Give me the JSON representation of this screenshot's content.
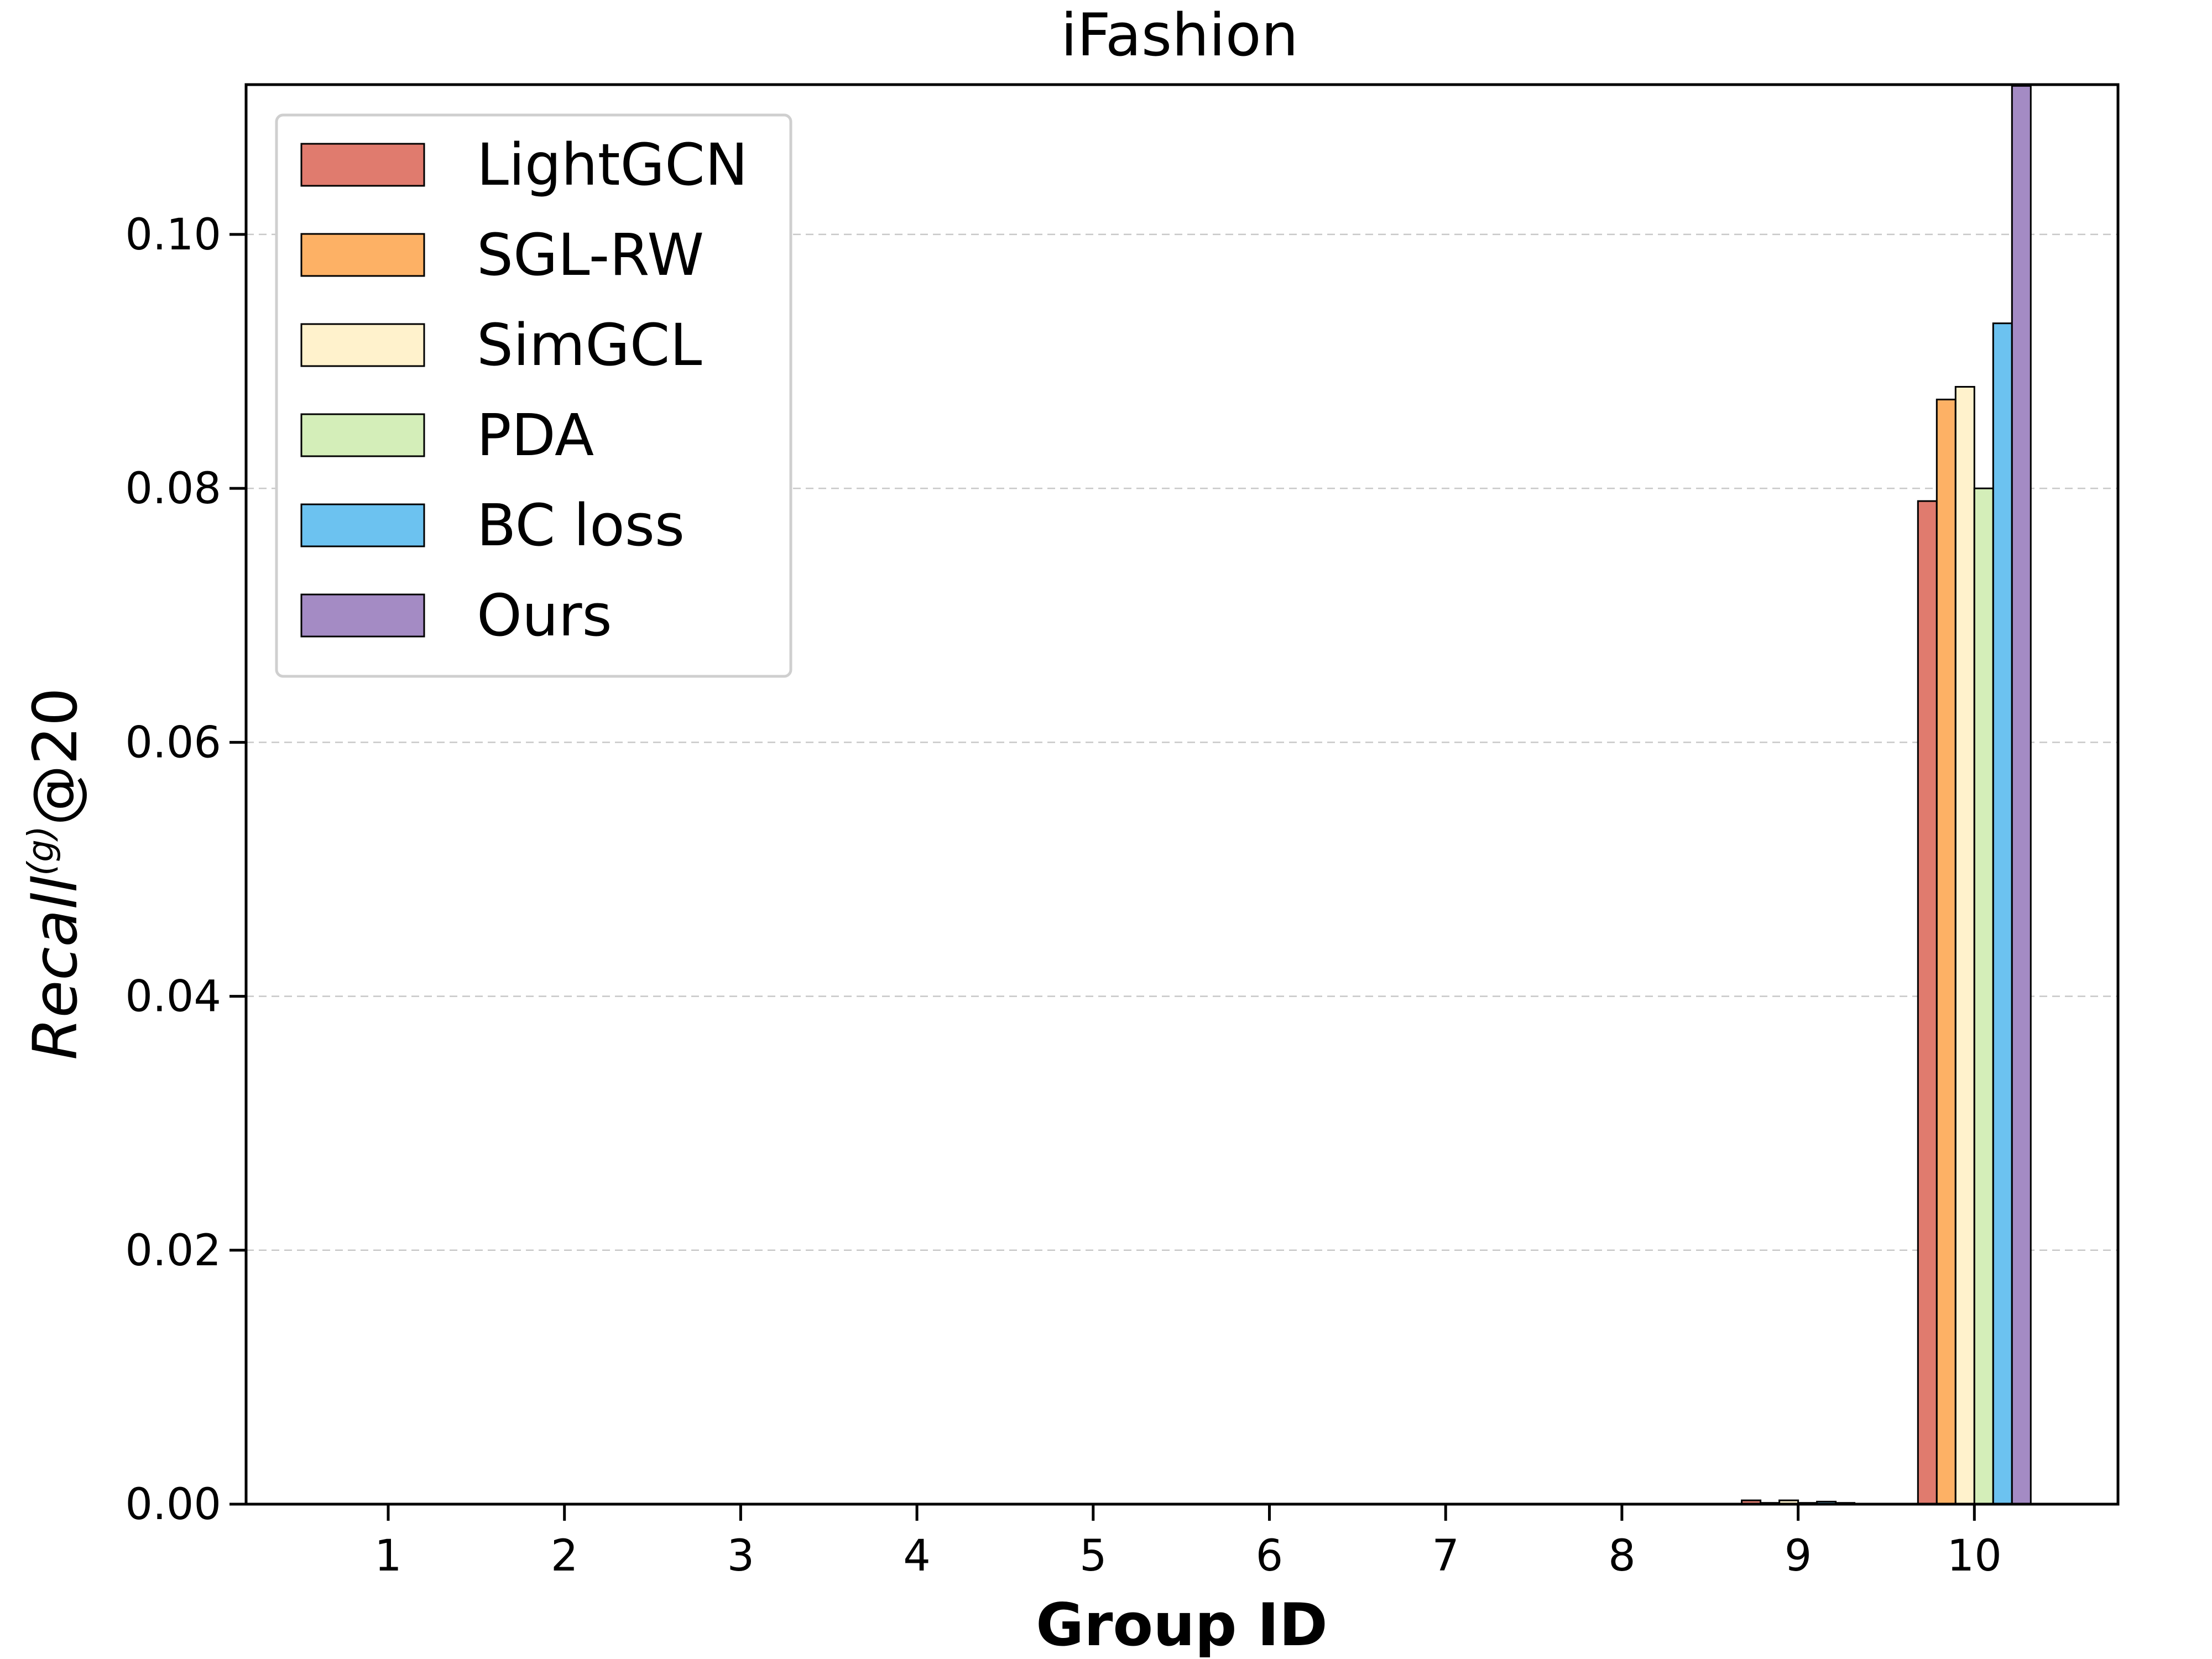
{
  "chart_data": {
    "type": "bar",
    "title": "iFashion",
    "xlabel": "Group ID",
    "ylabel_main": "Recall",
    "ylabel_sup": "(g)",
    "ylabel_suffix": "@20",
    "categories": [
      "1",
      "2",
      "3",
      "4",
      "5",
      "6",
      "7",
      "8",
      "9",
      "10"
    ],
    "ylim": [
      0,
      0.1118
    ],
    "yticks": [
      0.0,
      0.02,
      0.04,
      0.06,
      0.08,
      0.1
    ],
    "ytick_labels": [
      "0.00",
      "0.02",
      "0.04",
      "0.06",
      "0.08",
      "0.10"
    ],
    "grid": "horizontal-dashed",
    "legend_position": "top-left",
    "series": [
      {
        "name": "LightGCN",
        "color": "#e07b6e",
        "values": [
          0,
          0,
          0,
          0,
          0,
          0,
          0,
          0,
          0.0003,
          0.079
        ]
      },
      {
        "name": "SGL-RW",
        "color": "#fdb165",
        "values": [
          0,
          0,
          0,
          0,
          0,
          0,
          0,
          0,
          0.0001,
          0.087
        ]
      },
      {
        "name": "SimGCL",
        "color": "#fff2cc",
        "values": [
          0,
          0,
          0,
          0,
          0,
          0,
          0,
          0,
          0.0003,
          0.088
        ]
      },
      {
        "name": "PDA",
        "color": "#d4eeb9",
        "values": [
          0,
          0,
          0,
          0,
          0,
          0,
          0,
          0,
          0.0001,
          0.08
        ]
      },
      {
        "name": "BC loss",
        "color": "#6cc2f0",
        "values": [
          0,
          0,
          0,
          0,
          0,
          0,
          0,
          0,
          0.0002,
          0.093
        ]
      },
      {
        "name": "Ours",
        "color": "#a48bc4",
        "values": [
          0,
          0,
          0,
          0,
          0,
          0,
          0,
          0,
          0.0001,
          0.1117
        ]
      }
    ]
  }
}
